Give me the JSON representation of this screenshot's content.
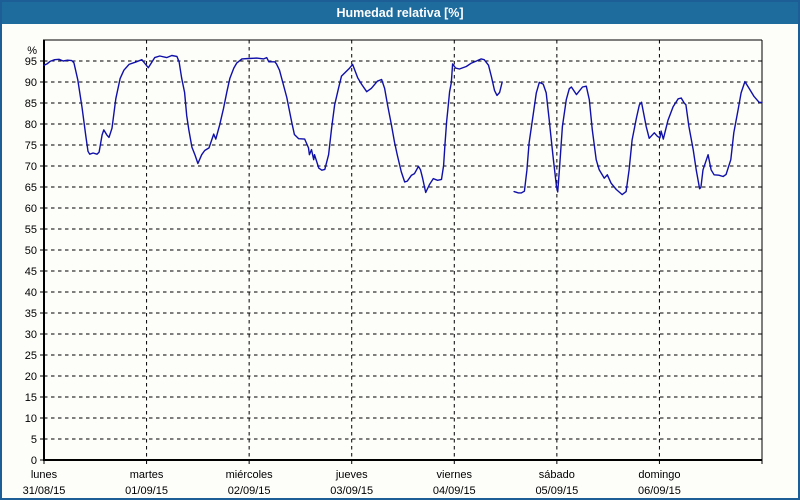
{
  "window": {
    "title": "Humedad relativa [%]"
  },
  "colors": {
    "header_bg": "#1E6C9E",
    "window_border": "#1E5E96",
    "plot_bg": "#FDFDFA",
    "grid": "#000000",
    "axis": "#000000",
    "tick_text": "#000000",
    "line": "#1010A8"
  },
  "chart_data": {
    "type": "line",
    "title": "Humedad relativa [%]",
    "grid": "dashed",
    "legend": "none",
    "y_axis": {
      "unit_label": "%",
      "min": 0,
      "max": 100,
      "tick_step": 5,
      "labeled_max": 95
    },
    "x_axis": {
      "unit": "hours",
      "min": 0,
      "max": 168,
      "day_tick_step_hours": 24,
      "days": [
        {
          "name": "lunes",
          "date": "31/08/15"
        },
        {
          "name": "martes",
          "date": "01/09/15"
        },
        {
          "name": "miércoles",
          "date": "02/09/15"
        },
        {
          "name": "jueves",
          "date": "03/09/15"
        },
        {
          "name": "viernes",
          "date": "04/09/15"
        },
        {
          "name": "sábado",
          "date": "05/09/15"
        },
        {
          "name": "domingo",
          "date": "06/09/15"
        }
      ]
    },
    "series": [
      {
        "name": "Humedad relativa [%]",
        "color": "#1010A8",
        "segments": [
          [
            [
              0,
              94.0
            ],
            [
              0.7,
              94.3
            ],
            [
              1.4,
              94.9
            ],
            [
              2.5,
              95.3
            ],
            [
              3.5,
              95.4
            ],
            [
              4.5,
              95.0
            ],
            [
              5.5,
              95.2
            ],
            [
              6.5,
              95.1
            ],
            [
              7.0,
              94.6
            ],
            [
              7.9,
              90.5
            ],
            [
              8.9,
              84.0
            ],
            [
              9.8,
              77.0
            ],
            [
              10.3,
              73.5
            ],
            [
              10.7,
              72.8
            ],
            [
              11.5,
              73.1
            ],
            [
              12.4,
              72.8
            ],
            [
              12.9,
              73.3
            ],
            [
              13.6,
              77.4
            ],
            [
              14.0,
              78.6
            ],
            [
              14.7,
              77.4
            ],
            [
              15.2,
              76.8
            ],
            [
              15.9,
              79.0
            ],
            [
              16.8,
              86.0
            ],
            [
              17.8,
              90.8
            ],
            [
              18.7,
              92.8
            ],
            [
              19.9,
              94.2
            ],
            [
              21.3,
              94.7
            ],
            [
              22.9,
              95.3
            ],
            [
              23.6,
              94.4
            ],
            [
              24.4,
              93.4
            ],
            [
              25.9,
              95.8
            ],
            [
              27.1,
              96.2
            ],
            [
              28.7,
              95.8
            ],
            [
              29.9,
              96.3
            ],
            [
              31.1,
              96.1
            ],
            [
              31.6,
              94.8
            ],
            [
              32.2,
              91.0
            ],
            [
              32.9,
              87.5
            ],
            [
              33.4,
              82.0
            ],
            [
              33.9,
              78.5
            ],
            [
              34.6,
              74.5
            ],
            [
              35.3,
              72.7
            ],
            [
              36.0,
              70.6
            ],
            [
              36.9,
              72.7
            ],
            [
              37.6,
              73.7
            ],
            [
              38.6,
              74.3
            ],
            [
              39.7,
              77.6
            ],
            [
              40.2,
              76.4
            ],
            [
              41.1,
              79.8
            ],
            [
              42.0,
              83.7
            ],
            [
              42.8,
              87.7
            ],
            [
              43.5,
              90.9
            ],
            [
              44.4,
              93.3
            ],
            [
              45.1,
              94.5
            ],
            [
              46.3,
              95.5
            ],
            [
              47.9,
              95.6
            ],
            [
              49.8,
              95.7
            ],
            [
              51.4,
              95.5
            ],
            [
              52.1,
              95.8
            ],
            [
              52.6,
              94.8
            ],
            [
              54.0,
              94.8
            ],
            [
              54.4,
              94.3
            ],
            [
              55.1,
              92.8
            ],
            [
              56.8,
              86.3
            ],
            [
              57.9,
              80.7
            ],
            [
              58.6,
              77.5
            ],
            [
              59.6,
              76.5
            ],
            [
              61.0,
              76.4
            ],
            [
              61.9,
              74.3
            ],
            [
              62.1,
              72.7
            ],
            [
              62.6,
              73.9
            ],
            [
              63.1,
              71.5
            ],
            [
              63.3,
              72.7
            ],
            [
              64.3,
              69.5
            ],
            [
              65.0,
              69.0
            ],
            [
              65.7,
              69.2
            ],
            [
              66.6,
              72.7
            ],
            [
              67.3,
              79.0
            ],
            [
              68.0,
              84.5
            ],
            [
              68.9,
              88.5
            ],
            [
              69.6,
              91.4
            ],
            [
              70.3,
              92.1
            ],
            [
              71.5,
              93.3
            ],
            [
              72.2,
              94.2
            ],
            [
              73.4,
              91.0
            ],
            [
              74.3,
              89.5
            ],
            [
              75.5,
              87.7
            ],
            [
              76.6,
              88.5
            ],
            [
              78.0,
              90.2
            ],
            [
              79.0,
              90.6
            ],
            [
              79.7,
              88.5
            ],
            [
              80.4,
              84.5
            ],
            [
              81.3,
              79.7
            ],
            [
              82.0,
              75.7
            ],
            [
              82.7,
              72.5
            ],
            [
              83.6,
              68.6
            ],
            [
              84.4,
              66.2
            ],
            [
              85.0,
              66.4
            ],
            [
              86.0,
              67.8
            ],
            [
              86.7,
              68.2
            ],
            [
              87.6,
              69.9
            ],
            [
              88.1,
              69.1
            ],
            [
              88.6,
              67.0
            ],
            [
              89.3,
              63.7
            ],
            [
              90.2,
              65.6
            ],
            [
              91.1,
              67.0
            ],
            [
              92.1,
              66.6
            ],
            [
              93.0,
              66.8
            ],
            [
              93.5,
              70.1
            ],
            [
              93.8,
              74.9
            ],
            [
              94.2,
              80.5
            ],
            [
              94.6,
              84.5
            ],
            [
              94.9,
              87.7
            ],
            [
              95.3,
              89.8
            ],
            [
              95.6,
              94.3
            ],
            [
              96.3,
              93.3
            ],
            [
              97.2,
              93.1
            ],
            [
              98.8,
              93.7
            ],
            [
              100.0,
              94.5
            ],
            [
              101.2,
              95.0
            ],
            [
              102.3,
              95.5
            ],
            [
              103.0,
              95.3
            ],
            [
              104.0,
              94.0
            ],
            [
              104.7,
              91.2
            ],
            [
              105.4,
              88.0
            ],
            [
              106.0,
              86.8
            ],
            [
              106.6,
              87.5
            ],
            [
              107.2,
              90.0
            ]
          ],
          [
            [
              110.0,
              63.9
            ],
            [
              111.0,
              63.6
            ],
            [
              111.7,
              63.6
            ],
            [
              112.4,
              64.0
            ],
            [
              113.0,
              69.0
            ],
            [
              113.5,
              75.5
            ],
            [
              114.5,
              82.6
            ],
            [
              115.2,
              87.4
            ],
            [
              115.9,
              89.9
            ],
            [
              116.8,
              89.5
            ],
            [
              117.5,
              87.4
            ],
            [
              118.2,
              81.0
            ],
            [
              118.7,
              76.2
            ],
            [
              119.2,
              71.5
            ],
            [
              119.9,
              65.3
            ],
            [
              120.2,
              63.8
            ],
            [
              120.6,
              69.1
            ],
            [
              121.3,
              79.4
            ],
            [
              122.2,
              85.8
            ],
            [
              122.9,
              88.4
            ],
            [
              123.4,
              88.8
            ],
            [
              124.6,
              87.0
            ],
            [
              126.0,
              88.8
            ],
            [
              126.9,
              89.0
            ],
            [
              127.6,
              85.8
            ],
            [
              128.3,
              78.6
            ],
            [
              129.2,
              71.5
            ],
            [
              129.9,
              69.1
            ],
            [
              131.1,
              67.1
            ],
            [
              131.8,
              67.9
            ],
            [
              132.7,
              65.9
            ],
            [
              133.9,
              64.4
            ],
            [
              135.3,
              63.2
            ],
            [
              136.2,
              63.9
            ],
            [
              136.9,
              69.1
            ],
            [
              137.6,
              76.2
            ],
            [
              138.6,
              81.4
            ],
            [
              139.3,
              84.5
            ],
            [
              139.8,
              85.2
            ],
            [
              140.9,
              79.4
            ],
            [
              141.6,
              76.6
            ],
            [
              142.8,
              77.9
            ],
            [
              143.5,
              77.1
            ],
            [
              144.1,
              76.7
            ],
            [
              144.4,
              78.3
            ],
            [
              144.9,
              76.4
            ],
            [
              146.0,
              80.9
            ],
            [
              147.2,
              84.1
            ],
            [
              148.4,
              86.0
            ],
            [
              149.1,
              86.2
            ],
            [
              149.8,
              85.0
            ],
            [
              150.2,
              84.6
            ],
            [
              150.9,
              79.4
            ],
            [
              151.9,
              73.9
            ],
            [
              152.6,
              69.1
            ],
            [
              153.4,
              64.6
            ],
            [
              153.7,
              64.9
            ],
            [
              154.2,
              69.1
            ],
            [
              155.4,
              72.7
            ],
            [
              156.1,
              69.1
            ],
            [
              156.8,
              67.9
            ],
            [
              157.9,
              67.8
            ],
            [
              158.9,
              67.5
            ],
            [
              159.6,
              68.0
            ],
            [
              160.7,
              71.5
            ],
            [
              161.4,
              77.9
            ],
            [
              162.4,
              83.4
            ],
            [
              163.1,
              87.4
            ],
            [
              164.0,
              90.1
            ],
            [
              164.9,
              88.6
            ],
            [
              166.1,
              86.6
            ],
            [
              167.3,
              85.2
            ],
            [
              168.0,
              85.1
            ]
          ]
        ]
      }
    ]
  }
}
